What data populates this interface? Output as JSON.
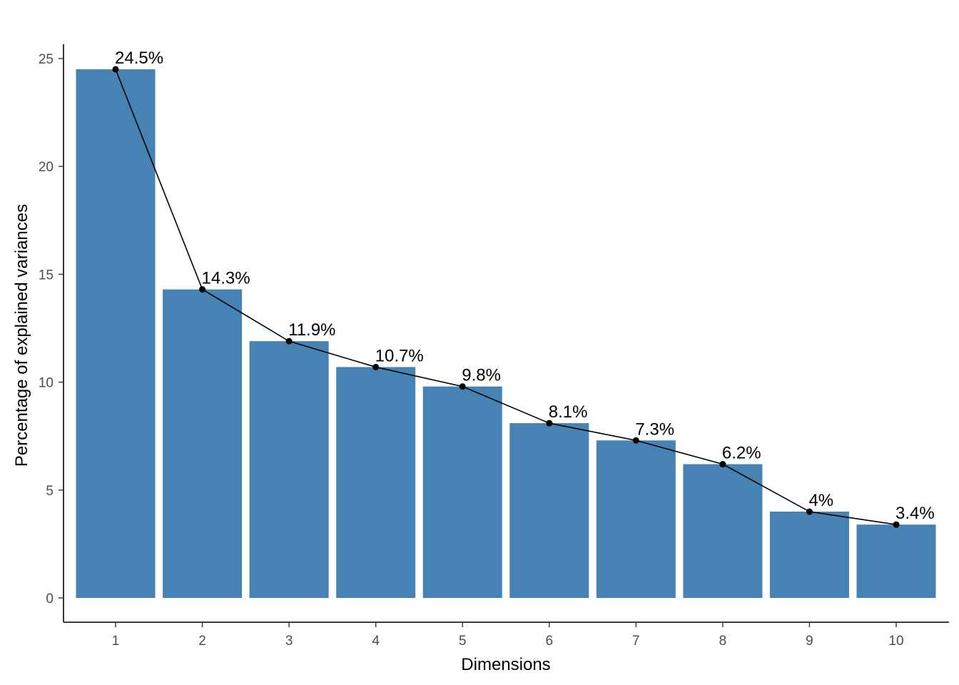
{
  "chart_data": {
    "type": "bar",
    "categories": [
      "1",
      "2",
      "3",
      "4",
      "5",
      "6",
      "7",
      "8",
      "9",
      "10"
    ],
    "values": [
      24.5,
      14.3,
      11.9,
      10.7,
      9.8,
      8.1,
      7.3,
      6.2,
      4.0,
      3.4
    ],
    "labels": [
      "24.5%",
      "14.3%",
      "11.9%",
      "10.7%",
      "9.8%",
      "8.1%",
      "7.3%",
      "6.2%",
      "4%",
      "3.4%"
    ],
    "overlay": "line-with-points",
    "title": "",
    "xlabel": "Dimensions",
    "ylabel": "Percentage of explained variances",
    "ylim": [
      0,
      25
    ],
    "yticks": [
      0,
      5,
      10,
      15,
      20,
      25
    ],
    "grid": false,
    "legend": "none",
    "colors": {
      "bar": "#4682B4",
      "line": "#000000",
      "point": "#000000"
    }
  }
}
